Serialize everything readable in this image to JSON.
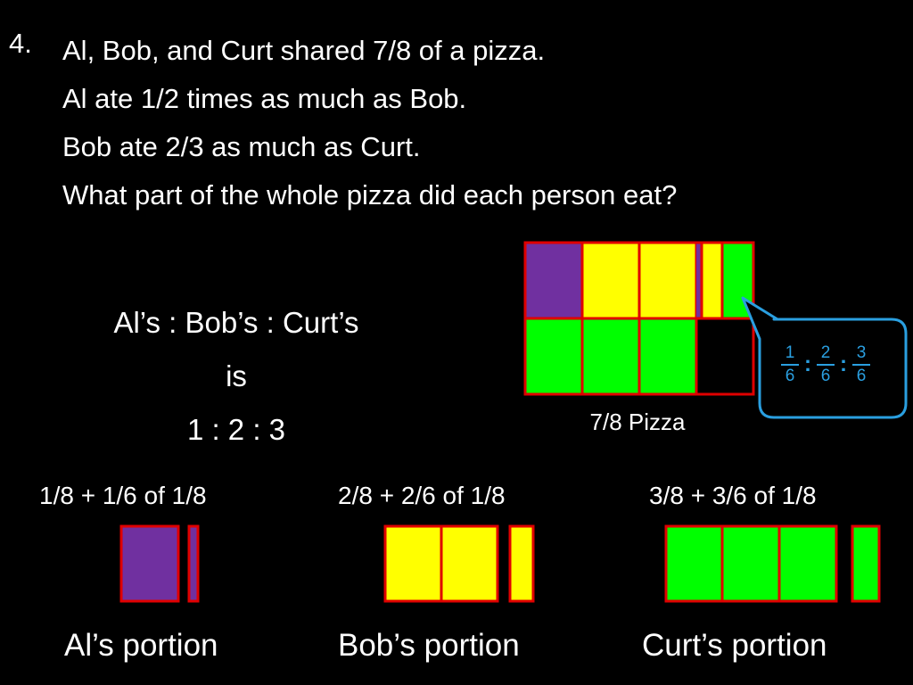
{
  "problem": {
    "number": "4.",
    "lines": [
      "Al, Bob, and Curt shared 7/8 of a pizza.",
      "Al ate 1/2 times as much as Bob.",
      "Bob ate 2/3 as much as Curt.",
      "What part of the whole pizza did each person eat?"
    ]
  },
  "ratio": {
    "line1": "Al’s : Bob’s : Curt’s",
    "line2": "is",
    "line3": "1 : 2 : 3"
  },
  "pizza_label": "7/8 Pizza",
  "callout": {
    "fractions": [
      {
        "num": "1",
        "den": "6"
      },
      {
        "num": "2",
        "den": "6"
      },
      {
        "num": "3",
        "den": "6"
      }
    ],
    "separator": ":"
  },
  "portions": [
    {
      "expression": "1/8 + 1/6 of 1/8",
      "label": "Al’s portion"
    },
    {
      "expression": "2/8 + 2/6 of 1/8",
      "label": "Bob’s portion"
    },
    {
      "expression": "3/8 + 3/6 of 1/8",
      "label": "Curt’s portion"
    }
  ],
  "colors": {
    "al": "#7030a0",
    "bob": "#ffff00",
    "curt": "#00ff00",
    "outline": "#e00000",
    "callout": "#2a9fe0"
  }
}
